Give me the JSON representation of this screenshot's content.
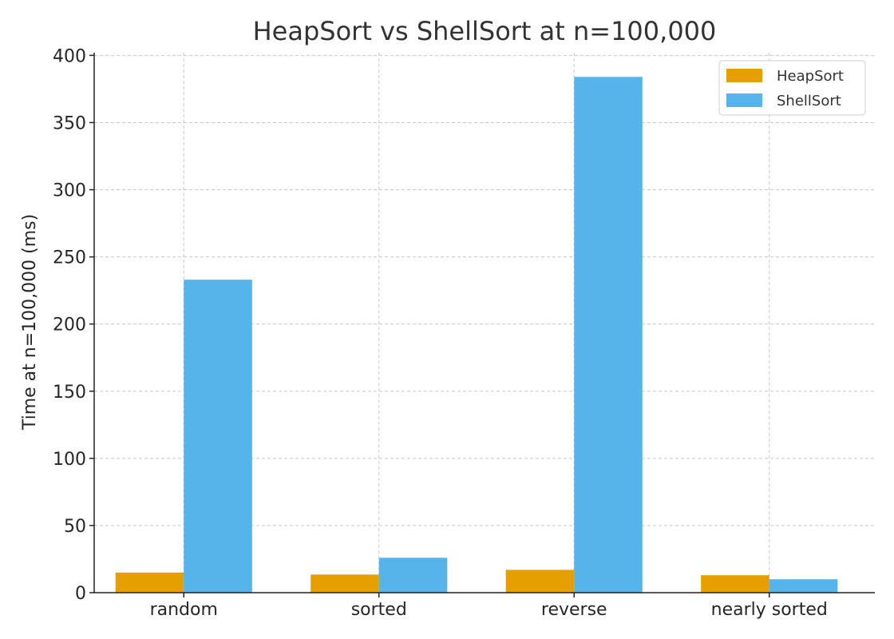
{
  "chart_data": {
    "type": "bar",
    "title": "HeapSort vs ShellSort at n=100,000",
    "xlabel": "",
    "ylabel": "Time at n=100,000 (ms)",
    "categories": [
      "random",
      "sorted",
      "reverse",
      "nearly sorted"
    ],
    "series": [
      {
        "name": "HeapSort",
        "color": "#E69F00",
        "values": [
          15,
          13.5,
          17,
          13
        ]
      },
      {
        "name": "ShellSort",
        "color": "#56B4E9",
        "values": [
          233,
          26,
          384,
          10
        ]
      }
    ],
    "ylim": [
      0,
      400
    ],
    "yticks": [
      0,
      50,
      100,
      150,
      200,
      250,
      300,
      350,
      400
    ],
    "grid": true,
    "legend_position": "top-right"
  }
}
